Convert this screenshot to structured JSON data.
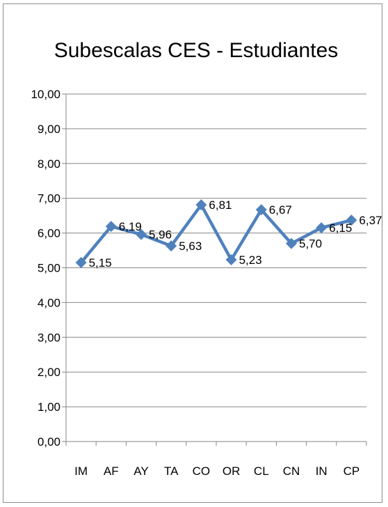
{
  "chart_data": {
    "type": "line",
    "title": "Subescalas CES - Estudiantes",
    "categories": [
      "IM",
      "AF",
      "AY",
      "TA",
      "CO",
      "OR",
      "CL",
      "CN",
      "IN",
      "CP"
    ],
    "values": [
      5.15,
      6.19,
      5.96,
      5.63,
      6.81,
      5.23,
      6.67,
      5.7,
      6.15,
      6.37
    ],
    "data_labels": [
      "5,15",
      "6,19",
      "5,96",
      "5,63",
      "6,81",
      "5,23",
      "6,67",
      "5,70",
      "6,15",
      "6,37"
    ],
    "ylim": [
      0,
      10
    ],
    "yticks": [
      "0,00",
      "1,00",
      "2,00",
      "3,00",
      "4,00",
      "5,00",
      "6,00",
      "7,00",
      "8,00",
      "9,00",
      "10,00"
    ],
    "xlabel": "",
    "ylabel": "",
    "grid": true,
    "legend": "none",
    "colors": {
      "series": "#4f81bd",
      "grid": "#868686",
      "axis": "#868686"
    }
  }
}
